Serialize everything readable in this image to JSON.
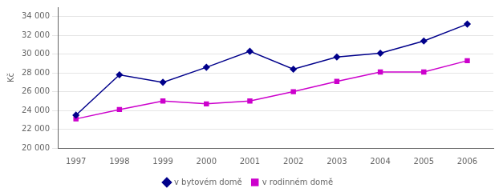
{
  "chart_data": {
    "type": "line",
    "x": [
      1997,
      1998,
      1999,
      2000,
      2001,
      2002,
      2003,
      2004,
      2005,
      2006
    ],
    "series": [
      {
        "name": "v bytovém domě",
        "color": "#00008B",
        "marker": "diamond",
        "values": [
          23500,
          27800,
          27000,
          28600,
          30300,
          28400,
          29700,
          30100,
          31400,
          33200
        ]
      },
      {
        "name": "v rodinném domě",
        "color": "#CC00CC",
        "marker": "square",
        "values": [
          23100,
          24100,
          25000,
          24700,
          25000,
          26000,
          27100,
          28100,
          28100,
          29300
        ]
      }
    ],
    "ylabel": "Kč",
    "xlim": [
      1996.6,
      2006.6
    ],
    "xticks": [
      1997,
      1998,
      1999,
      2000,
      2001,
      2002,
      2003,
      2004,
      2005,
      2006
    ],
    "ylim": [
      20000,
      35000
    ],
    "yticks": [
      {
        "value": 20000,
        "label": "20 000"
      },
      {
        "value": 22000,
        "label": "22 000"
      },
      {
        "value": 24000,
        "label": "24 000"
      },
      {
        "value": 26000,
        "label": "26 000"
      },
      {
        "value": 28000,
        "label": "28 000"
      },
      {
        "value": 30000,
        "label": "30 000"
      },
      {
        "value": 32000,
        "label": "32 000"
      },
      {
        "value": 34000,
        "label": "34 000"
      }
    ],
    "grid": true,
    "legend": "bottom"
  }
}
